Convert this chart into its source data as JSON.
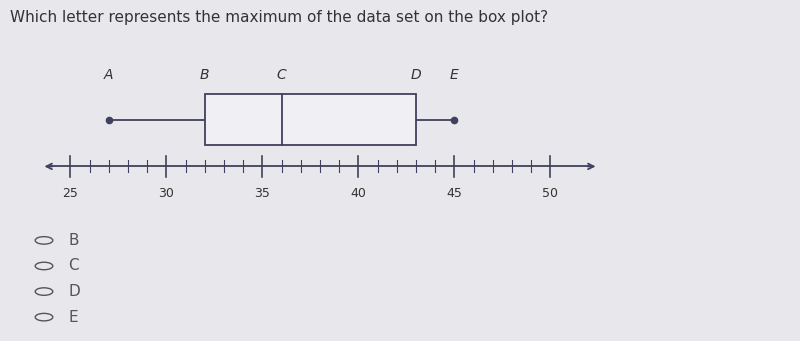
{
  "title": "Which letter represents the maximum of the data set on the box plot?",
  "title_fontsize": 11,
  "axis_display_min": 25,
  "axis_display_max": 50,
  "axis_ticks": [
    25,
    30,
    35,
    40,
    45,
    50
  ],
  "whisker_min": 27,
  "q1": 32,
  "median": 36,
  "q3": 43,
  "whisker_max": 45,
  "labels": {
    "A": 27,
    "B": 32,
    "C": 36,
    "D": 43,
    "E": 45
  },
  "choices": [
    "B",
    "C",
    "D",
    "E"
  ],
  "bg_color": "#e8e8ec",
  "line_color": "#404060",
  "box_facecolor": "#f0f0f4",
  "box_edgecolor": "#404060",
  "text_color": "#333333",
  "choice_text_color": "#555555"
}
